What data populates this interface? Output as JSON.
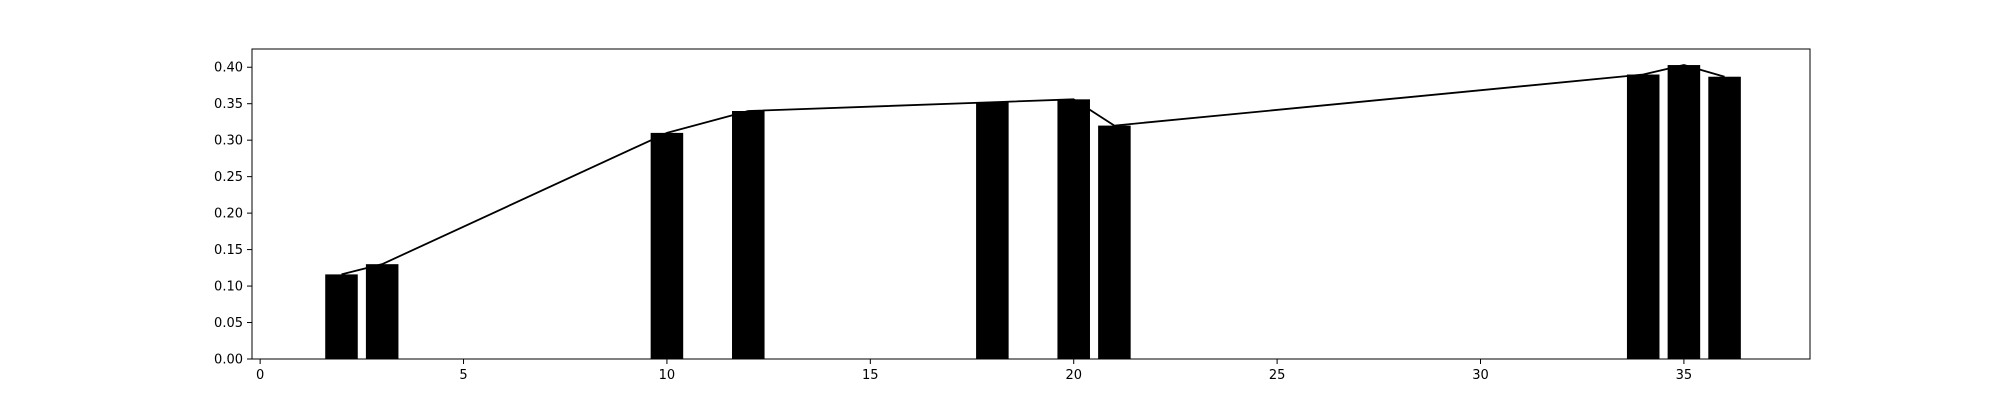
{
  "chart_data": {
    "type": "bar",
    "title": "",
    "xlabel": "",
    "ylabel": "",
    "xlim": [
      -0.2,
      38.1
    ],
    "ylim": [
      0,
      0.425
    ],
    "grid": false,
    "bar_color": "#000000",
    "line_color": "#000000",
    "xticks": [
      0,
      5,
      10,
      15,
      20,
      25,
      30,
      35
    ],
    "xtick_labels": [
      "0",
      "5",
      "10",
      "15",
      "20",
      "25",
      "30",
      "35"
    ],
    "yticks": [
      0.0,
      0.05,
      0.1,
      0.15,
      0.2,
      0.25,
      0.3,
      0.35,
      0.4
    ],
    "ytick_labels": [
      "0.00",
      "0.05",
      "0.10",
      "0.15",
      "0.20",
      "0.25",
      "0.30",
      "0.35",
      "0.40"
    ],
    "bars": [
      {
        "x": 2,
        "value": 0.116
      },
      {
        "x": 3,
        "value": 0.13
      },
      {
        "x": 10,
        "value": 0.31
      },
      {
        "x": 12,
        "value": 0.34
      },
      {
        "x": 18,
        "value": 0.352
      },
      {
        "x": 20,
        "value": 0.356
      },
      {
        "x": 21,
        "value": 0.32
      },
      {
        "x": 34,
        "value": 0.39
      },
      {
        "x": 35,
        "value": 0.403
      },
      {
        "x": 36,
        "value": 0.387
      }
    ],
    "bar_width": 0.8,
    "line": {
      "x": [
        2,
        3,
        10,
        12,
        18,
        20,
        21,
        34,
        35,
        36
      ],
      "y": [
        0.116,
        0.13,
        0.31,
        0.34,
        0.352,
        0.356,
        0.32,
        0.39,
        0.403,
        0.387
      ]
    }
  }
}
